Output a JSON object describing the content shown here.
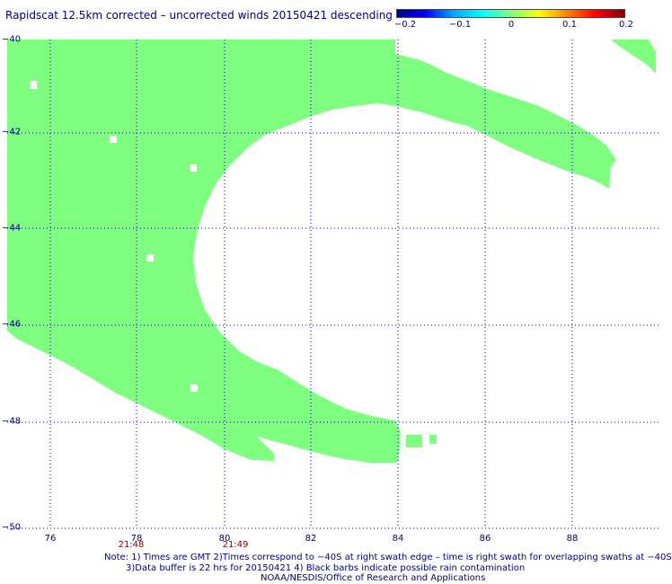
{
  "title": "Rapidscat 12.5km corrected – uncorrected winds 20150421 descending",
  "colorbar": {
    "ticks": [
      "−0.2",
      "−0.1",
      "0",
      "0.1",
      "0.2"
    ]
  },
  "axes": {
    "lon_labels": [
      "76",
      "78",
      "80",
      "82",
      "84",
      "86",
      "88"
    ],
    "lat_labels": [
      "−40",
      "−42",
      "−44",
      "−46",
      "−48",
      "−50"
    ],
    "lon_range": [
      75.0,
      90.0
    ],
    "lat_range": [
      -50,
      -40
    ],
    "grid": "dotted"
  },
  "swath_times": [
    {
      "lon": 77.8,
      "label": "21:48"
    },
    {
      "lon": 80.2,
      "label": "21:49"
    }
  ],
  "notes": {
    "line1": "Note: 1) Times are GMT 2)Times correspond to −40S at right swath edge – time is right swath for overlapping swaths at −40S",
    "line2": "3)Data buffer is 22 hrs for 20150421 4) Black barbs indicate possible rain contamination",
    "line3": "NOAA/NESDIS/Office of Research and Applications"
  },
  "colors": {
    "data_fill": "#7fff7f",
    "axis_text": "#00007f",
    "time_text": "#7f0000",
    "grid": "#00007f"
  }
}
